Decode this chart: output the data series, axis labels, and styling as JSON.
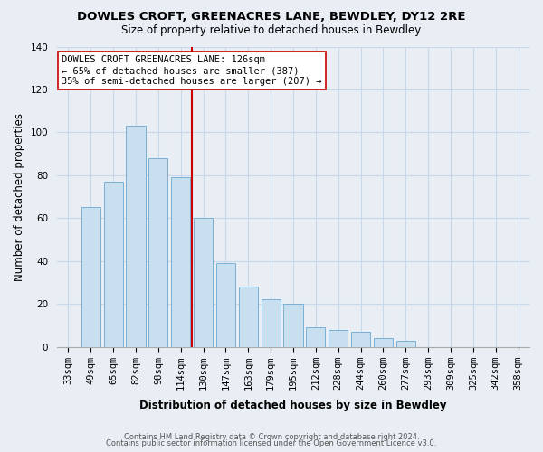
{
  "title": "DOWLES CROFT, GREENACRES LANE, BEWDLEY, DY12 2RE",
  "subtitle": "Size of property relative to detached houses in Bewdley",
  "xlabel": "Distribution of detached houses by size in Bewdley",
  "ylabel": "Number of detached properties",
  "bar_labels": [
    "33sqm",
    "49sqm",
    "65sqm",
    "82sqm",
    "98sqm",
    "114sqm",
    "130sqm",
    "147sqm",
    "163sqm",
    "179sqm",
    "195sqm",
    "212sqm",
    "228sqm",
    "244sqm",
    "260sqm",
    "277sqm",
    "293sqm",
    "309sqm",
    "325sqm",
    "342sqm",
    "358sqm"
  ],
  "bar_values": [
    0,
    65,
    77,
    103,
    88,
    79,
    60,
    39,
    28,
    22,
    20,
    9,
    8,
    7,
    4,
    3,
    0,
    0,
    0,
    0,
    0
  ],
  "bar_color": "#c8dff0",
  "bar_edge_color": "#7aafd4",
  "vline_x": 6,
  "vline_color": "#cc0000",
  "ylim": [
    0,
    140
  ],
  "yticks": [
    0,
    20,
    40,
    60,
    80,
    100,
    120,
    140
  ],
  "annotation_text": "DOWLES CROFT GREENACRES LANE: 126sqm\n← 65% of detached houses are smaller (387)\n35% of semi-detached houses are larger (207) →",
  "annotation_box_facecolor": "white",
  "annotation_box_edgecolor": "#cc0000",
  "footer_line1": "Contains HM Land Registry data © Crown copyright and database right 2024.",
  "footer_line2": "Contains public sector information licensed under the Open Government Licence v3.0.",
  "background_color": "#e8eef4",
  "grid_color": "#c8d8e8",
  "title_fontsize": 9.5,
  "subtitle_fontsize": 8.5,
  "axis_label_fontsize": 8.5,
  "tick_fontsize": 7.5,
  "annotation_fontsize": 7.5,
  "footer_fontsize": 6.0
}
